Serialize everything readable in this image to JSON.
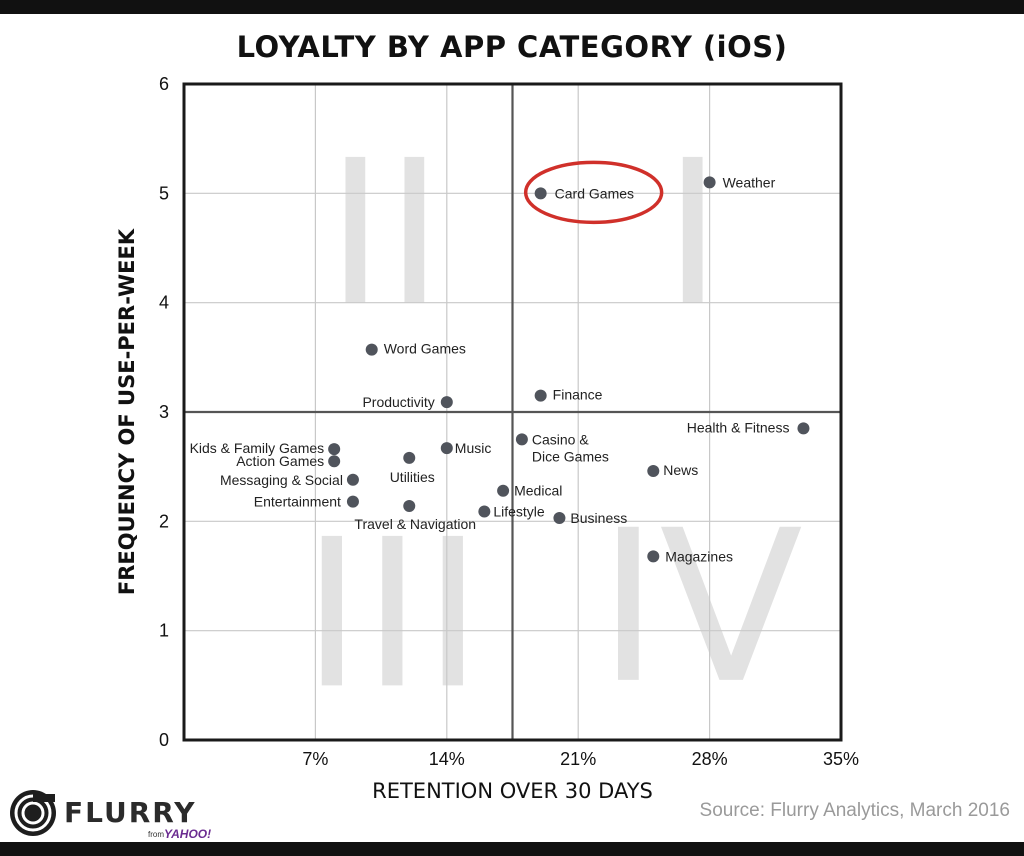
{
  "chart_data": {
    "type": "scatter",
    "title": "LOYALTY BY APP CATEGORY (iOS)",
    "xlabel": "RETENTION OVER 30 DAYS",
    "ylabel": "FREQUENCY OF USE-PER-WEEK",
    "xlim": [
      0,
      35
    ],
    "ylim": [
      0,
      6
    ],
    "x_ticks": [
      7,
      14,
      21,
      28,
      35
    ],
    "x_tick_labels": [
      "7%",
      "14%",
      "21%",
      "28%",
      "35%"
    ],
    "y_ticks": [
      0,
      1,
      2,
      3,
      4,
      5,
      6
    ],
    "y_tick_labels": [
      "0",
      "1",
      "2",
      "3",
      "4",
      "5",
      "6"
    ],
    "grid": true,
    "quadrant_divider": {
      "x": 17.5,
      "y": 3
    },
    "quadrant_labels": [
      "I",
      "II",
      "III",
      "IV"
    ],
    "highlight": "Card Games",
    "points": [
      {
        "label": "Card Games",
        "x": 19,
        "y": 5.0
      },
      {
        "label": "Weather",
        "x": 28,
        "y": 5.1
      },
      {
        "label": "Word Games",
        "x": 10,
        "y": 3.57
      },
      {
        "label": "Productivity",
        "x": 14,
        "y": 3.09
      },
      {
        "label": "Finance",
        "x": 19,
        "y": 3.15
      },
      {
        "label": "Health & Fitness",
        "x": 33,
        "y": 2.85
      },
      {
        "label": "Kids & Family Games",
        "x": 8,
        "y": 2.66
      },
      {
        "label": "Action Games",
        "x": 8,
        "y": 2.55
      },
      {
        "label": "Messaging & Social",
        "x": 9,
        "y": 2.38
      },
      {
        "label": "Entertainment",
        "x": 9,
        "y": 2.18
      },
      {
        "label": "Utilities",
        "x": 12,
        "y": 2.58
      },
      {
        "label": "Music",
        "x": 14,
        "y": 2.67
      },
      {
        "label": "Travel & Navigation",
        "x": 12,
        "y": 2.14
      },
      {
        "label": "Casino & Dice Games",
        "x": 18,
        "y": 2.75
      },
      {
        "label": "Medical",
        "x": 17,
        "y": 2.28
      },
      {
        "label": "Lifestyle",
        "x": 16,
        "y": 2.09
      },
      {
        "label": "Business",
        "x": 20,
        "y": 2.03
      },
      {
        "label": "News",
        "x": 25,
        "y": 2.46
      },
      {
        "label": "Magazines",
        "x": 25,
        "y": 1.68
      }
    ]
  },
  "footer": {
    "brand": "FLURRY",
    "brand_sub_from": "from",
    "brand_sub_company": "YAHOO!",
    "source": "Source: Flurry Analytics, March 2016"
  },
  "colors": {
    "point": "#50545c",
    "highlight_ring": "#d0302a",
    "grid": "#c8c8c8",
    "frame": "#1a1a1a",
    "divider": "#555555",
    "quadrant_numeral": "#e2e2e2",
    "brand": "#2b2b2b",
    "yahoo": "#6b2c91"
  }
}
